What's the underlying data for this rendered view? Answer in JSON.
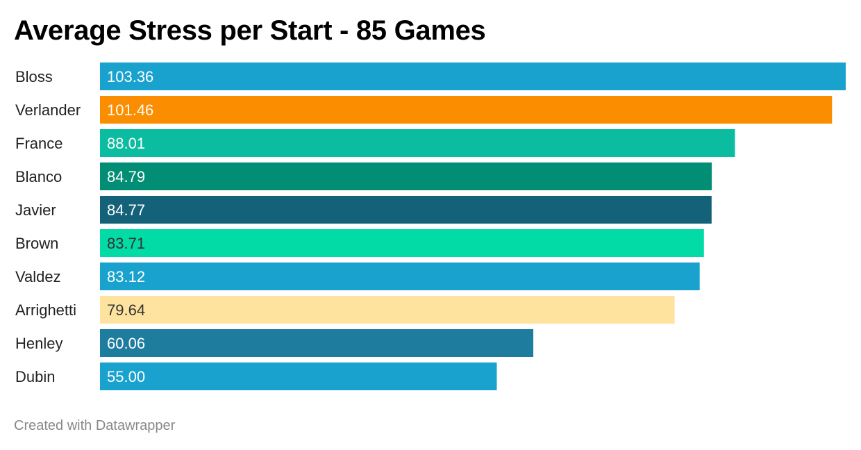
{
  "chart_data": {
    "type": "bar",
    "orientation": "horizontal",
    "title": "Average Stress per Start - 85 Games",
    "categories": [
      "Bloss",
      "Verlander",
      "France",
      "Blanco",
      "Javier",
      "Brown",
      "Valdez",
      "Arrighetti",
      "Henley",
      "Dubin"
    ],
    "values": [
      103.36,
      101.46,
      88.01,
      84.79,
      84.77,
      83.71,
      83.12,
      79.64,
      60.06,
      55.0
    ],
    "value_labels": [
      "103.36",
      "101.46",
      "88.01",
      "84.79",
      "84.77",
      "83.71",
      "83.12",
      "79.64",
      "60.06",
      "55.00"
    ],
    "colors": [
      "#1aa2cf",
      "#fb8d00",
      "#0cbca0",
      "#018e74",
      "#14627a",
      "#03dba7",
      "#1aa2cf",
      "#fee39e",
      "#1e7d9f",
      "#1aa2cf"
    ],
    "label_colors": [
      "#ffffff",
      "#ffffff",
      "#ffffff",
      "#ffffff",
      "#ffffff",
      "#333333",
      "#ffffff",
      "#333333",
      "#ffffff",
      "#ffffff"
    ],
    "xlim": [
      0,
      103.36
    ],
    "xlabel": "",
    "ylabel": "",
    "grid": false,
    "legend": "none"
  },
  "footer": {
    "credit": "Created with Datawrapper"
  }
}
